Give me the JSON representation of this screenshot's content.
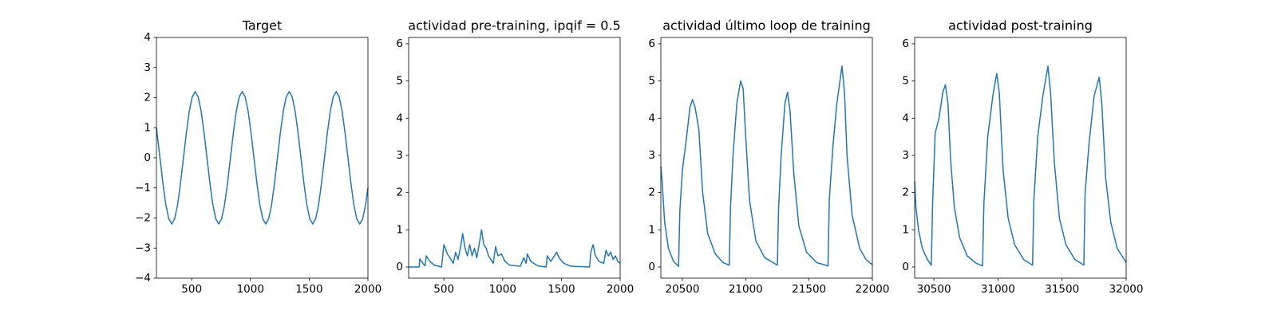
{
  "chart_data": [
    {
      "type": "line",
      "title": "Target",
      "color": "#1f77b4",
      "xlim": [
        200,
        2000
      ],
      "ylim": [
        -4,
        4
      ],
      "xticks": [
        500,
        1000,
        1500,
        2000
      ],
      "yticks": [
        {
          "value": -4,
          "label": "−4"
        },
        {
          "value": -3,
          "label": "−3"
        },
        {
          "value": -2,
          "label": "−2"
        },
        {
          "value": -1,
          "label": "−1"
        },
        0,
        1,
        2,
        3,
        4
      ],
      "x": [
        200,
        230,
        255,
        280,
        305,
        330,
        355,
        380,
        405,
        430,
        455,
        480,
        505,
        530,
        555,
        580,
        605,
        630,
        655,
        680,
        705,
        730,
        755,
        780,
        805,
        830,
        855,
        880,
        905,
        930,
        955,
        980,
        1005,
        1030,
        1055,
        1080,
        1105,
        1130,
        1155,
        1180,
        1205,
        1230,
        1255,
        1280,
        1305,
        1330,
        1355,
        1380,
        1405,
        1430,
        1455,
        1480,
        1505,
        1530,
        1555,
        1580,
        1605,
        1630,
        1655,
        1680,
        1705,
        1730,
        1755,
        1780,
        1805,
        1830,
        1855,
        1880,
        1905,
        1930,
        1955,
        1980,
        2000
      ],
      "values": [
        1.0,
        0,
        -0.84,
        -1.56,
        -2.03,
        -2.2,
        -2.03,
        -1.56,
        -0.84,
        0,
        0.84,
        1.56,
        2.03,
        2.2,
        2.03,
        1.56,
        0.84,
        0,
        -0.84,
        -1.56,
        -2.03,
        -2.2,
        -2.03,
        -1.56,
        -0.84,
        0,
        0.84,
        1.56,
        2.03,
        2.2,
        2.03,
        1.56,
        0.84,
        0,
        -0.84,
        -1.56,
        -2.03,
        -2.2,
        -2.03,
        -1.56,
        -0.84,
        0,
        0.84,
        1.56,
        2.03,
        2.2,
        2.03,
        1.56,
        0.84,
        0,
        -0.84,
        -1.56,
        -2.03,
        -2.2,
        -2.03,
        -1.56,
        -0.84,
        0,
        0.84,
        1.56,
        2.03,
        2.2,
        2.03,
        1.56,
        0.84,
        0,
        -0.84,
        -1.56,
        -2.03,
        -2.2,
        -2.03,
        -1.56,
        -1.0
      ]
    },
    {
      "type": "line",
      "title": "actividad pre-training, ipqif = 0.5",
      "color": "#1f77b4",
      "xlim": [
        200,
        2000
      ],
      "ylim": [
        -0.3,
        6.17
      ],
      "xticks": [
        500,
        1000,
        1500,
        2000
      ],
      "yticks": [
        0,
        1,
        2,
        3,
        4,
        5,
        6
      ],
      "x": [
        200,
        290,
        295,
        320,
        340,
        350,
        380,
        420,
        480,
        500,
        530,
        560,
        580,
        600,
        620,
        640,
        660,
        680,
        700,
        720,
        740,
        760,
        780,
        800,
        820,
        840,
        860,
        880,
        900,
        920,
        940,
        960,
        990,
        1020,
        1060,
        1150,
        1180,
        1200,
        1210,
        1240,
        1300,
        1370,
        1380,
        1410,
        1460,
        1480,
        1520,
        1580,
        1740,
        1750,
        1770,
        1790,
        1820,
        1860,
        1880,
        1900,
        1920,
        1940,
        1960,
        1980,
        2000
      ],
      "values": [
        0,
        0,
        0.22,
        0.1,
        0.03,
        0.3,
        0.15,
        0.05,
        0,
        0.6,
        0.35,
        0.2,
        0.1,
        0.4,
        0.2,
        0.5,
        0.9,
        0.5,
        0.3,
        0.6,
        0.3,
        0.5,
        0.25,
        0.6,
        1.0,
        0.6,
        0.5,
        0.3,
        0.2,
        0.1,
        0.55,
        0.3,
        0.35,
        0.15,
        0.05,
        0.02,
        0.25,
        0.1,
        0.35,
        0.15,
        0.03,
        0,
        0.3,
        0.15,
        0.4,
        0.25,
        0.1,
        0.02,
        0,
        0.4,
        0.6,
        0.3,
        0.15,
        0.1,
        0.45,
        0.3,
        0.4,
        0.2,
        0.3,
        0.15,
        0.1
      ]
    },
    {
      "type": "line",
      "title": "actividad último loop de training",
      "color": "#1f77b4",
      "xlim": [
        20330,
        22000
      ],
      "ylim": [
        -0.3,
        6.17
      ],
      "xticks": [
        20500,
        21000,
        21500,
        22000
      ],
      "yticks": [
        0,
        1,
        2,
        3,
        4,
        5,
        6
      ],
      "x": [
        20330,
        20340,
        20360,
        20390,
        20430,
        20470,
        20480,
        20500,
        20530,
        20560,
        20580,
        20600,
        20630,
        20660,
        20700,
        20760,
        20820,
        20870,
        20880,
        20900,
        20930,
        20960,
        20980,
        21000,
        21030,
        21080,
        21150,
        21250,
        21260,
        21280,
        21310,
        21330,
        21350,
        21380,
        21420,
        21480,
        21560,
        21650,
        21660,
        21690,
        21720,
        21760,
        21780,
        21800,
        21840,
        21900,
        21950,
        22000
      ],
      "values": [
        2.7,
        2.3,
        1.2,
        0.5,
        0.15,
        0.02,
        1.5,
        2.6,
        3.4,
        4.3,
        4.5,
        4.3,
        3.7,
        2.0,
        0.9,
        0.35,
        0.12,
        0.05,
        1.6,
        3.0,
        4.4,
        5.0,
        4.8,
        3.5,
        1.8,
        0.7,
        0.25,
        0.05,
        1.6,
        3.0,
        4.4,
        4.7,
        4.2,
        2.5,
        1.1,
        0.4,
        0.12,
        0.03,
        1.8,
        3.3,
        4.4,
        5.4,
        4.7,
        3.0,
        1.4,
        0.5,
        0.2,
        0.06
      ]
    },
    {
      "type": "line",
      "title": "actividad post-training",
      "color": "#1f77b4",
      "xlim": [
        30350,
        32000
      ],
      "ylim": [
        -0.3,
        6.17
      ],
      "xticks": [
        30500,
        31000,
        31500,
        32000
      ],
      "yticks": [
        0,
        1,
        2,
        3,
        4,
        5,
        6
      ],
      "x": [
        30350,
        30360,
        30380,
        30410,
        30450,
        30480,
        30490,
        30510,
        30540,
        30570,
        30590,
        30610,
        30630,
        30660,
        30700,
        30760,
        30830,
        30880,
        30890,
        30920,
        30960,
        30990,
        31010,
        31040,
        31080,
        31130,
        31200,
        31270,
        31280,
        31310,
        31350,
        31390,
        31410,
        31440,
        31480,
        31530,
        31600,
        31670,
        31680,
        31710,
        31750,
        31790,
        31810,
        31840,
        31880,
        31930,
        32000
      ],
      "values": [
        2.3,
        1.6,
        1.0,
        0.5,
        0.2,
        0.05,
        1.7,
        3.6,
        4.0,
        4.7,
        4.9,
        4.4,
        2.9,
        1.6,
        0.8,
        0.3,
        0.1,
        0.03,
        1.7,
        3.5,
        4.6,
        5.2,
        4.7,
        2.6,
        1.3,
        0.6,
        0.2,
        0.05,
        1.8,
        3.5,
        4.6,
        5.4,
        4.7,
        2.8,
        1.3,
        0.6,
        0.2,
        0.05,
        2.0,
        3.3,
        4.6,
        5.1,
        4.4,
        2.4,
        1.2,
        0.5,
        0.12
      ]
    }
  ]
}
